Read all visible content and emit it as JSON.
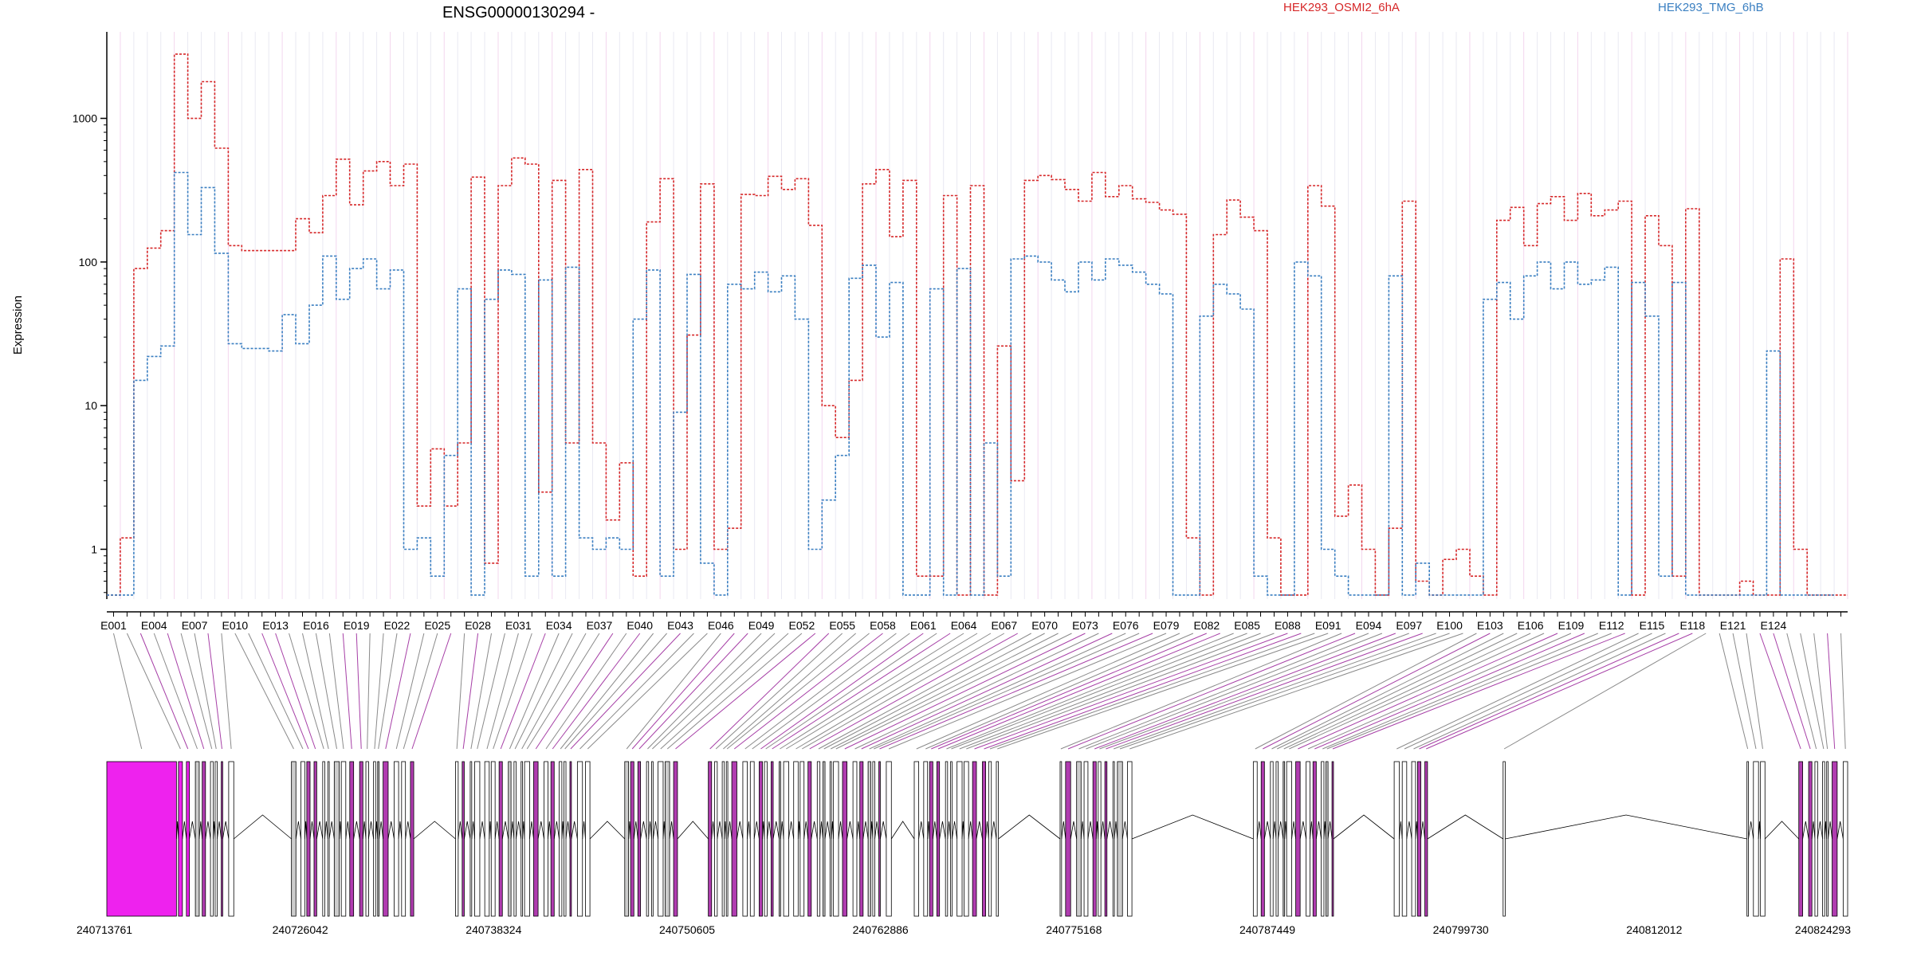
{
  "chart_data": {
    "type": "line",
    "title": "ENSG00000130294 -",
    "ylabel": "Expression",
    "yscale": "log",
    "ylim": [
      0.45,
      4000
    ],
    "yticks": [
      {
        "value": 1,
        "label": "1"
      },
      {
        "value": 10,
        "label": "10"
      },
      {
        "value": 100,
        "label": "100"
      },
      {
        "value": 1000,
        "label": "1000"
      }
    ],
    "exon_labels": [
      "E001",
      "E004",
      "E007",
      "E010",
      "E013",
      "E016",
      "E019",
      "E022",
      "E025",
      "E028",
      "E031",
      "E034",
      "E037",
      "E040",
      "E043",
      "E046",
      "E049",
      "E052",
      "E055",
      "E058",
      "E061",
      "E064",
      "E067",
      "E070",
      "E073",
      "E076",
      "E079",
      "E082",
      "E085",
      "E088",
      "E091",
      "E094",
      "E097",
      "E100",
      "E103",
      "E106",
      "E109",
      "E112",
      "E115",
      "E118",
      "E121",
      "E124"
    ],
    "series": [
      {
        "name": "HEK293_OSMI2_6hA",
        "color": "#d62728",
        "values": [
          0.48,
          1.2,
          90,
          125,
          165,
          2800,
          1000,
          1800,
          620,
          130,
          120,
          120,
          120,
          120,
          200,
          160,
          290,
          520,
          250,
          430,
          500,
          340,
          480,
          2,
          5,
          2,
          5.5,
          390,
          0.8,
          340,
          530,
          480,
          2.5,
          370,
          5.5,
          440,
          5.5,
          1.6,
          4,
          0.65,
          190,
          380,
          1,
          31,
          350,
          1,
          1.4,
          295,
          290,
          395,
          320,
          380,
          180,
          10,
          6,
          15,
          350,
          440,
          150,
          370,
          0.65,
          0.65,
          290,
          0.48,
          340,
          0.48,
          26,
          3,
          370,
          400,
          375,
          320,
          265,
          420,
          285,
          340,
          275,
          260,
          230,
          215,
          1.2,
          0.48,
          155,
          270,
          205,
          165,
          1.2,
          0.48,
          0.48,
          340,
          245,
          1.7,
          2.8,
          1,
          0.48,
          1.4,
          265,
          0.6,
          0.48,
          0.85,
          1,
          0.65,
          0.48,
          195,
          240,
          130,
          255,
          285,
          195,
          300,
          210,
          230,
          265,
          0.48,
          210,
          130,
          0.65,
          235,
          0.48,
          0.48,
          0.48,
          0.6,
          0.48,
          0.48,
          105,
          1,
          0.48,
          0.48,
          0.48
        ]
      },
      {
        "name": "HEK293_TMG_6hB",
        "color": "#3a7fc1",
        "values": [
          0.48,
          0.48,
          15,
          22,
          26,
          420,
          155,
          330,
          115,
          27,
          25,
          25,
          24,
          43,
          27,
          50,
          110,
          55,
          90,
          105,
          65,
          88,
          1,
          1.2,
          0.65,
          4.5,
          65,
          0.48,
          55,
          88,
          82,
          0.65,
          75,
          0.65,
          92,
          1.2,
          1,
          1.2,
          1,
          40,
          88,
          0.65,
          9,
          82,
          0.8,
          0.48,
          70,
          65,
          85,
          62,
          80,
          40,
          1,
          2.2,
          4.5,
          77,
          95,
          30,
          72,
          0.48,
          0.48,
          65,
          0.48,
          90,
          0.48,
          5.5,
          0.65,
          105,
          110,
          100,
          75,
          62,
          100,
          75,
          105,
          95,
          85,
          70,
          60,
          0.48,
          0.48,
          42,
          70,
          60,
          47,
          0.65,
          0.48,
          0.48,
          100,
          80,
          1,
          0.65,
          0.48,
          0.48,
          0.48,
          80,
          0.48,
          0.8,
          0.48,
          0.48,
          0.48,
          0.48,
          55,
          72,
          40,
          80,
          100,
          65,
          100,
          70,
          75,
          92,
          0.48,
          72,
          42,
          0.65,
          72,
          0.48,
          0.48,
          0.48,
          0.48,
          0.48,
          0.48,
          24,
          0.48,
          0.48,
          0.48,
          0.48
        ]
      }
    ],
    "genomic_coordinates": [
      "240713761",
      "240726042",
      "240738324",
      "240750605",
      "240762886",
      "240775168",
      "240787449",
      "240799730",
      "240812012",
      "240824293"
    ],
    "highlight_color": "#ee22ee",
    "grid": "faint vertical exon lines"
  }
}
